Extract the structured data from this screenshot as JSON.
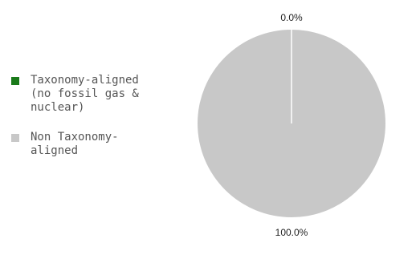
{
  "chart_data": {
    "type": "pie",
    "title": "",
    "slices": [
      {
        "label": "Taxonomy-aligned (no fossil gas & nuclear)",
        "value": 0.0,
        "display": "0.0%",
        "color": "#1a7a1a"
      },
      {
        "label": "Non Taxonomy-aligned",
        "value": 100.0,
        "display": "100.0%",
        "color": "#c8c8c8"
      }
    ],
    "legend": {
      "placement": "left",
      "items": [
        {
          "label": "Taxonomy-aligned\n(no fossil gas &\nnuclear)",
          "color": "#1a7a1a"
        },
        {
          "label": "Non Taxonomy-\naligned",
          "color": "#c8c8c8"
        }
      ]
    }
  }
}
